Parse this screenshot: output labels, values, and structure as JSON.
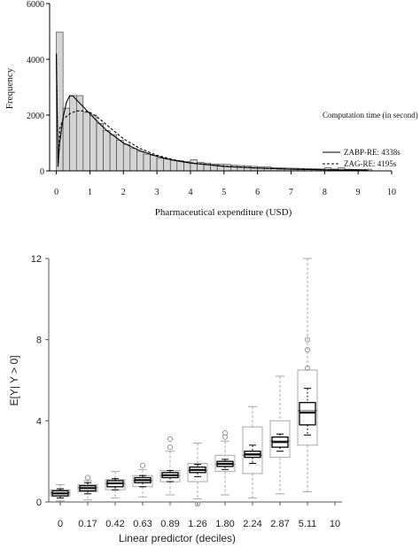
{
  "chart_data": [
    {
      "type": "bar",
      "title": "",
      "xlabel": "Pharmaceutical expenditure (USD)",
      "ylabel": "Frequency",
      "xlim": [
        -0.2,
        10
      ],
      "ylim": [
        0,
        6000
      ],
      "x_ticks": [
        "0",
        "1",
        "2",
        "3",
        "4",
        "5",
        "6",
        "7",
        "8",
        "9",
        "10"
      ],
      "y_ticks": [
        "0",
        "2000",
        "4000",
        "6000"
      ],
      "bin_width": 0.2,
      "bin_starts": [
        0,
        0.2,
        0.4,
        0.6,
        0.8,
        1.0,
        1.2,
        1.4,
        1.6,
        1.8,
        2.0,
        2.2,
        2.4,
        2.6,
        2.8,
        3.0,
        3.2,
        3.4,
        3.6,
        3.8,
        4.0,
        4.2,
        4.4,
        4.6,
        4.8,
        5.0,
        5.2,
        5.4,
        5.6,
        5.8,
        6.0,
        6.2,
        6.4,
        6.6,
        6.8,
        7.0,
        7.2,
        7.4,
        7.6,
        7.8,
        8.0,
        8.2,
        8.4,
        8.6,
        8.8,
        9.0,
        9.2
      ],
      "frequencies": [
        4980,
        2250,
        2700,
        2700,
        2100,
        2000,
        1700,
        1450,
        1300,
        1100,
        950,
        800,
        700,
        600,
        550,
        450,
        420,
        380,
        360,
        330,
        400,
        310,
        280,
        250,
        240,
        230,
        200,
        190,
        180,
        160,
        150,
        140,
        120,
        110,
        100,
        95,
        90,
        80,
        75,
        70,
        110,
        65,
        110,
        60,
        55,
        50,
        60
      ],
      "legend": {
        "title": "Computation time (in second)",
        "position": "right",
        "entries": [
          "ZABP-RE: 4338s",
          "ZAG-RE: 4195s"
        ]
      },
      "series": [
        {
          "name": "ZABP-RE: 4338s",
          "style": "solid",
          "x": [
            0,
            0.05,
            0.1,
            0.2,
            0.3,
            0.4,
            0.5,
            0.6,
            0.8,
            1.0,
            1.2,
            1.5,
            2.0,
            2.5,
            3.0,
            3.5,
            4.0,
            5.0,
            6.0,
            7.0,
            8.0,
            9.0,
            9.3
          ],
          "y": [
            4200,
            150,
            1000,
            1900,
            2450,
            2700,
            2680,
            2550,
            2300,
            2050,
            1800,
            1450,
            1000,
            720,
            520,
            380,
            280,
            160,
            100,
            60,
            40,
            25,
            20
          ]
        },
        {
          "name": "ZAG-RE: 4195s",
          "style": "dashed",
          "x": [
            0,
            0.05,
            0.1,
            0.2,
            0.4,
            0.6,
            0.8,
            1.0,
            1.2,
            1.5,
            2.0,
            2.5,
            3.0,
            3.5,
            4.0,
            5.0,
            6.0,
            7.0,
            8.0,
            9.0,
            9.3
          ],
          "y": [
            4200,
            150,
            1500,
            1850,
            2050,
            2150,
            2150,
            2100,
            1950,
            1650,
            1150,
            800,
            560,
            400,
            290,
            170,
            100,
            60,
            40,
            25,
            20
          ]
        }
      ]
    },
    {
      "type": "box",
      "title": "",
      "xlabel": "Linear predictor (deciles)",
      "ylabel": "E[Y| Y > 0]",
      "ylim": [
        0,
        12
      ],
      "y_ticks": [
        "0",
        "4",
        "8",
        "12"
      ],
      "x_tick_labels": [
        "0",
        "0.17",
        "0.42",
        "0.63",
        "0.89",
        "1.26",
        "1.80",
        "2.24",
        "2.87",
        "5.11",
        "10"
      ],
      "groups": [
        {
          "label": "0",
          "grey": {
            "q1": 0.3,
            "med": 0.45,
            "q3": 0.6,
            "lo": 0.05,
            "hi": 0.85
          },
          "black": {
            "q1": 0.3,
            "med": 0.42,
            "q3": 0.55,
            "lo": 0.2,
            "hi": 0.65
          },
          "outliers": []
        },
        {
          "label": "0.17",
          "grey": {
            "q1": 0.5,
            "med": 0.7,
            "q3": 0.85,
            "lo": 0.1,
            "hi": 1.05
          },
          "black": {
            "q1": 0.55,
            "med": 0.68,
            "q3": 0.8,
            "lo": 0.4,
            "hi": 0.95
          },
          "outliers": [
            1.2
          ]
        },
        {
          "label": "0.42",
          "grey": {
            "q1": 0.6,
            "med": 0.9,
            "q3": 1.1,
            "lo": 0.2,
            "hi": 1.5
          },
          "black": {
            "q1": 0.75,
            "med": 0.92,
            "q3": 1.05,
            "lo": 0.6,
            "hi": 1.15
          },
          "outliers": []
        },
        {
          "label": "0.63",
          "grey": {
            "q1": 0.75,
            "med": 1.05,
            "q3": 1.3,
            "lo": 0.25,
            "hi": 1.6
          },
          "black": {
            "q1": 0.95,
            "med": 1.08,
            "q3": 1.2,
            "lo": 0.75,
            "hi": 1.3
          },
          "outliers": [
            1.8
          ]
        },
        {
          "label": "0.89",
          "grey": {
            "q1": 1.0,
            "med": 1.3,
            "q3": 1.55,
            "lo": 0.35,
            "hi": 2.5
          },
          "black": {
            "q1": 1.2,
            "med": 1.32,
            "q3": 1.45,
            "lo": 1.0,
            "hi": 1.55
          },
          "outliers": [
            2.7,
            3.1
          ]
        },
        {
          "label": "1.26",
          "grey": {
            "q1": 1.0,
            "med": 1.55,
            "q3": 1.9,
            "lo": 0.15,
            "hi": 2.9
          },
          "black": {
            "q1": 1.45,
            "med": 1.58,
            "q3": 1.72,
            "lo": 1.25,
            "hi": 1.85
          },
          "outliers": [
            -0.1
          ]
        },
        {
          "label": "1.80",
          "grey": {
            "q1": 1.5,
            "med": 1.85,
            "q3": 2.3,
            "lo": 0.35,
            "hi": 3.0
          },
          "black": {
            "q1": 1.75,
            "med": 1.88,
            "q3": 2.0,
            "lo": 1.6,
            "hi": 2.1
          },
          "outliers": [
            3.2,
            3.4
          ]
        },
        {
          "label": "2.24",
          "grey": {
            "q1": 1.4,
            "med": 2.3,
            "q3": 3.7,
            "lo": 0.2,
            "hi": 4.7
          },
          "black": {
            "q1": 2.2,
            "med": 2.35,
            "q3": 2.5,
            "lo": 1.9,
            "hi": 2.8
          },
          "outliers": []
        },
        {
          "label": "2.87",
          "grey": {
            "q1": 2.2,
            "med": 3.0,
            "q3": 4.0,
            "lo": 0.4,
            "hi": 6.2
          },
          "black": {
            "q1": 2.7,
            "med": 2.95,
            "q3": 3.2,
            "lo": 2.5,
            "hi": 3.35
          },
          "outliers": []
        },
        {
          "label": "5.11",
          "grey": {
            "q1": 2.8,
            "med": 4.5,
            "q3": 6.5,
            "lo": 0.5,
            "hi": 12.0
          },
          "black": {
            "q1": 3.8,
            "med": 4.4,
            "q3": 4.9,
            "lo": 3.3,
            "hi": 5.6
          },
          "outliers": [
            6.6,
            7.5,
            8.0
          ]
        }
      ]
    }
  ]
}
